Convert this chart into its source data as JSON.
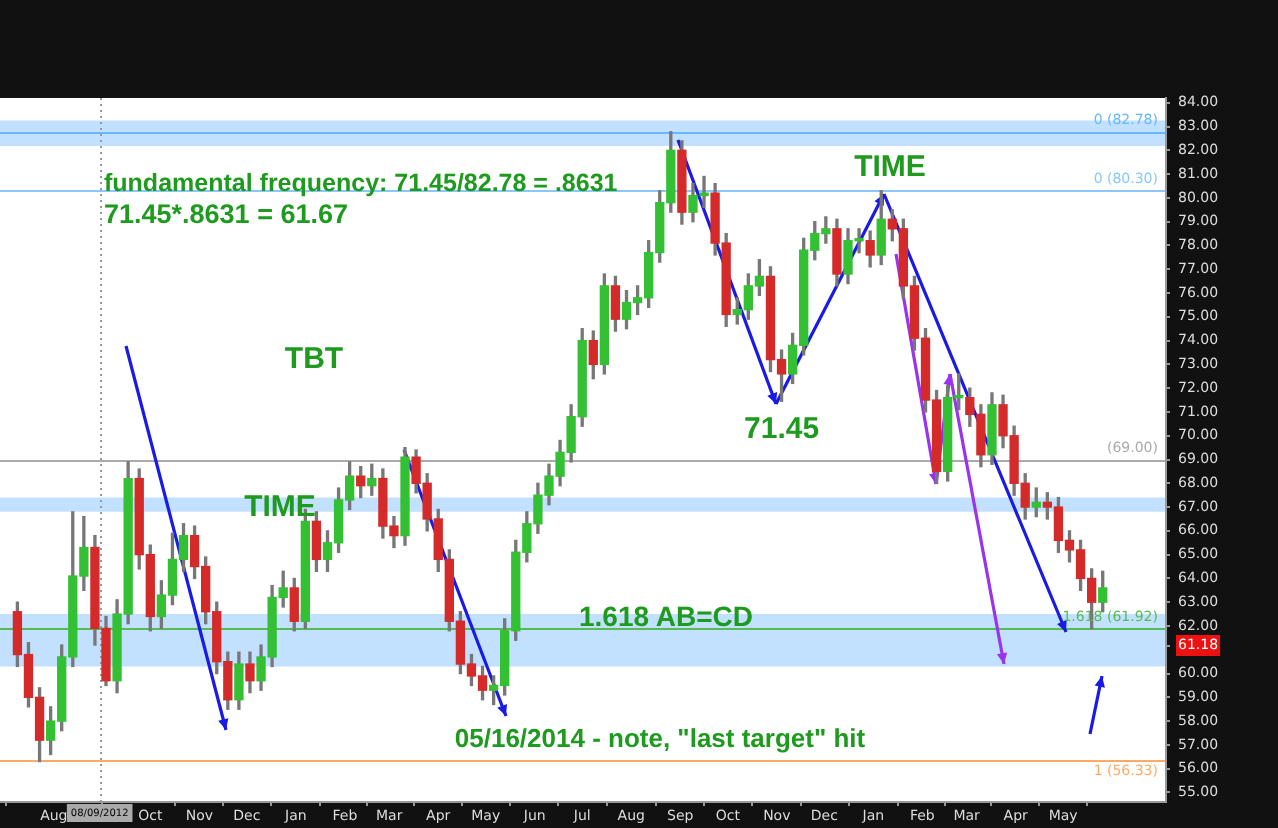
{
  "chart_data": {
    "type": "candlestick",
    "annotations": [
      "fundamental frequency: 71.45/82.78 = .8631",
      "71.45*.8631 = 61.67",
      "TBT",
      "TIME",
      "TIME",
      {
        "text": "71.45",
        "x": "2013-11-04",
        "y": 71.45
      },
      "1.618 AB=CD",
      "05/16/2014 - note, \"last target\" hit"
    ],
    "x": [
      "2012-07-09",
      "2012-07-16",
      "2012-07-23",
      "2012-07-30",
      "2012-08-06",
      "2012-08-13",
      "2012-08-20",
      "2012-08-27",
      "2012-09-03",
      "2012-09-10",
      "2012-09-17",
      "2012-09-24",
      "2012-10-01",
      "2012-10-08",
      "2012-10-15",
      "2012-10-22",
      "2012-10-29",
      "2012-11-05",
      "2012-11-12",
      "2012-11-19",
      "2012-11-26",
      "2012-12-03",
      "2012-12-10",
      "2012-12-17",
      "2012-12-24",
      "2012-12-31",
      "2013-01-07",
      "2013-01-14",
      "2013-01-21",
      "2013-01-28",
      "2013-02-04",
      "2013-02-11",
      "2013-02-18",
      "2013-02-25",
      "2013-03-04",
      "2013-03-11",
      "2013-03-18",
      "2013-03-25",
      "2013-04-01",
      "2013-04-08",
      "2013-04-15",
      "2013-04-22",
      "2013-04-29",
      "2013-05-06",
      "2013-05-13",
      "2013-05-20",
      "2013-05-27",
      "2013-06-03",
      "2013-06-10",
      "2013-06-17",
      "2013-06-24",
      "2013-07-01",
      "2013-07-08",
      "2013-07-15",
      "2013-07-22",
      "2013-07-29",
      "2013-08-05",
      "2013-08-12",
      "2013-08-19",
      "2013-08-26",
      "2013-09-02",
      "2013-09-09",
      "2013-09-16",
      "2013-09-23",
      "2013-09-30",
      "2013-10-07",
      "2013-10-14",
      "2013-10-21",
      "2013-10-28",
      "2013-11-04",
      "2013-11-11",
      "2013-11-18",
      "2013-11-25",
      "2013-12-02",
      "2013-12-09",
      "2013-12-16",
      "2013-12-23",
      "2013-12-30",
      "2014-01-06",
      "2014-01-13",
      "2014-01-20",
      "2014-01-27",
      "2014-02-03",
      "2014-02-10",
      "2014-02-17",
      "2014-02-24",
      "2014-03-03",
      "2014-03-10",
      "2014-03-17",
      "2014-03-24",
      "2014-03-31",
      "2014-04-07",
      "2014-04-14",
      "2014-04-21",
      "2014-04-28",
      "2014-05-05",
      "2014-05-12",
      "2014-05-19",
      "2014-05-26"
    ],
    "ohlc": [
      [
        62.6,
        63.0,
        60.3,
        60.8
      ],
      [
        60.8,
        61.3,
        58.6,
        59.0
      ],
      [
        59.0,
        59.4,
        56.3,
        57.2
      ],
      [
        57.2,
        58.6,
        56.6,
        58.0
      ],
      [
        58.0,
        61.2,
        57.6,
        60.7
      ],
      [
        60.7,
        66.8,
        60.3,
        64.1
      ],
      [
        64.1,
        66.6,
        63.5,
        65.3
      ],
      [
        65.3,
        65.8,
        61.2,
        61.9
      ],
      [
        61.9,
        62.4,
        59.5,
        59.7
      ],
      [
        59.7,
        63.1,
        59.2,
        62.5
      ],
      [
        62.5,
        68.9,
        62.1,
        68.2
      ],
      [
        68.2,
        68.6,
        64.4,
        65.0
      ],
      [
        65.0,
        65.4,
        61.8,
        62.4
      ],
      [
        62.4,
        63.9,
        61.9,
        63.3
      ],
      [
        63.3,
        65.9,
        62.9,
        64.8
      ],
      [
        64.8,
        66.3,
        64.3,
        65.8
      ],
      [
        65.8,
        66.2,
        64.0,
        64.5
      ],
      [
        64.5,
        64.9,
        62.1,
        62.6
      ],
      [
        62.6,
        63.0,
        60.0,
        60.5
      ],
      [
        60.5,
        60.9,
        58.5,
        58.9
      ],
      [
        58.9,
        60.9,
        58.5,
        60.4
      ],
      [
        60.4,
        60.9,
        59.2,
        59.7
      ],
      [
        59.7,
        61.2,
        59.3,
        60.7
      ],
      [
        60.7,
        63.7,
        60.3,
        63.2
      ],
      [
        63.2,
        64.3,
        62.8,
        63.6
      ],
      [
        63.6,
        64.0,
        61.8,
        62.2
      ],
      [
        62.2,
        66.9,
        61.9,
        66.4
      ],
      [
        66.4,
        66.8,
        64.3,
        64.8
      ],
      [
        64.8,
        66.0,
        64.3,
        65.5
      ],
      [
        65.5,
        67.8,
        65.1,
        67.3
      ],
      [
        67.3,
        68.9,
        66.9,
        68.3
      ],
      [
        68.3,
        68.7,
        67.4,
        67.9
      ],
      [
        67.9,
        68.8,
        67.5,
        68.2
      ],
      [
        68.2,
        68.6,
        65.7,
        66.2
      ],
      [
        66.2,
        66.6,
        65.3,
        65.8
      ],
      [
        65.8,
        69.5,
        65.4,
        69.1
      ],
      [
        69.1,
        69.4,
        67.6,
        68.0
      ],
      [
        68.0,
        68.4,
        66.0,
        66.5
      ],
      [
        66.5,
        66.9,
        64.3,
        64.8
      ],
      [
        64.8,
        65.2,
        61.8,
        62.2
      ],
      [
        62.2,
        62.6,
        60.0,
        60.4
      ],
      [
        60.4,
        60.8,
        59.5,
        59.9
      ],
      [
        59.9,
        60.3,
        58.9,
        59.3
      ],
      [
        59.3,
        59.9,
        58.7,
        59.5
      ],
      [
        59.5,
        62.3,
        59.1,
        61.8
      ],
      [
        61.8,
        65.6,
        61.4,
        65.1
      ],
      [
        65.1,
        66.8,
        64.7,
        66.3
      ],
      [
        66.3,
        68.0,
        65.9,
        67.5
      ],
      [
        67.5,
        68.8,
        67.1,
        68.3
      ],
      [
        68.3,
        69.8,
        67.9,
        69.3
      ],
      [
        69.3,
        71.3,
        68.9,
        70.8
      ],
      [
        70.8,
        74.5,
        70.4,
        74.0
      ],
      [
        74.0,
        74.4,
        72.4,
        73.0
      ],
      [
        73.0,
        76.8,
        72.6,
        76.3
      ],
      [
        76.3,
        76.7,
        74.4,
        74.9
      ],
      [
        74.9,
        76.1,
        74.5,
        75.6
      ],
      [
        75.6,
        76.3,
        75.1,
        75.8
      ],
      [
        75.8,
        78.2,
        75.4,
        77.7
      ],
      [
        77.7,
        80.3,
        77.3,
        79.8
      ],
      [
        79.8,
        82.78,
        79.4,
        82.0
      ],
      [
        82.0,
        82.4,
        78.9,
        79.4
      ],
      [
        79.4,
        80.6,
        79.0,
        80.1
      ],
      [
        80.1,
        80.9,
        79.6,
        80.2
      ],
      [
        80.2,
        80.6,
        77.6,
        78.1
      ],
      [
        78.1,
        78.5,
        74.6,
        75.1
      ],
      [
        75.1,
        75.8,
        74.7,
        75.3
      ],
      [
        75.3,
        76.8,
        74.9,
        76.3
      ],
      [
        76.3,
        77.4,
        75.9,
        76.7
      ],
      [
        76.7,
        77.1,
        72.7,
        73.2
      ],
      [
        73.2,
        73.6,
        71.45,
        72.6
      ],
      [
        72.6,
        74.3,
        72.2,
        73.8
      ],
      [
        73.8,
        78.3,
        73.4,
        77.8
      ],
      [
        77.8,
        79.0,
        77.4,
        78.5
      ],
      [
        78.5,
        79.2,
        78.1,
        78.7
      ],
      [
        78.7,
        79.1,
        76.3,
        76.8
      ],
      [
        76.8,
        78.7,
        76.4,
        78.2
      ],
      [
        78.2,
        78.7,
        77.7,
        78.2
      ],
      [
        78.2,
        78.6,
        77.1,
        77.6
      ],
      [
        77.6,
        80.3,
        77.2,
        79.1
      ],
      [
        79.1,
        79.5,
        78.2,
        78.7
      ],
      [
        78.7,
        79.1,
        75.8,
        76.3
      ],
      [
        76.3,
        76.7,
        73.6,
        74.1
      ],
      [
        74.1,
        74.5,
        71.0,
        71.5
      ],
      [
        71.5,
        71.9,
        68.0,
        68.5
      ],
      [
        68.5,
        72.1,
        68.1,
        71.6
      ],
      [
        71.6,
        72.6,
        71.1,
        71.6
      ],
      [
        71.6,
        72.0,
        70.4,
        70.9
      ],
      [
        70.9,
        71.3,
        68.7,
        69.2
      ],
      [
        69.2,
        71.8,
        68.8,
        71.3
      ],
      [
        71.3,
        71.7,
        69.5,
        70.0
      ],
      [
        70.0,
        70.4,
        67.5,
        68.0
      ],
      [
        68.0,
        68.4,
        66.5,
        67.0
      ],
      [
        67.0,
        67.8,
        66.6,
        67.2
      ],
      [
        67.2,
        67.6,
        66.5,
        67.0
      ],
      [
        67.0,
        67.4,
        65.1,
        65.6
      ],
      [
        65.6,
        66.0,
        64.7,
        65.2
      ],
      [
        65.2,
        65.6,
        63.5,
        64.0
      ],
      [
        64.0,
        64.4,
        61.9,
        63.0
      ],
      [
        63.0,
        64.3,
        62.6,
        63.6
      ]
    ],
    "xlim": [
      "2012-06-28",
      "2014-07-05"
    ],
    "xticks": [
      {
        "value": "2012-08-01",
        "label": "Aug"
      },
      {
        "value": "2012-10-01",
        "label": "Oct"
      },
      {
        "value": "2012-11-01",
        "label": "Nov"
      },
      {
        "value": "2012-12-01",
        "label": "Dec"
      },
      {
        "value": "2013-01-01",
        "label": "Jan"
      },
      {
        "value": "2013-02-01",
        "label": "Feb"
      },
      {
        "value": "2013-03-01",
        "label": "Mar"
      },
      {
        "value": "2013-04-01",
        "label": "Apr"
      },
      {
        "value": "2013-05-01",
        "label": "May"
      },
      {
        "value": "2013-06-01",
        "label": "Jun"
      },
      {
        "value": "2013-07-01",
        "label": "Jul"
      },
      {
        "value": "2013-08-01",
        "label": "Aug"
      },
      {
        "value": "2013-09-01",
        "label": "Sep"
      },
      {
        "value": "2013-10-01",
        "label": "Oct"
      },
      {
        "value": "2013-11-01",
        "label": "Nov"
      },
      {
        "value": "2013-12-01",
        "label": "Dec"
      },
      {
        "value": "2014-01-01",
        "label": "Jan"
      },
      {
        "value": "2014-02-01",
        "label": "Feb"
      },
      {
        "value": "2014-03-01",
        "label": "Mar"
      },
      {
        "value": "2014-04-01",
        "label": "Apr"
      },
      {
        "value": "2014-05-01",
        "label": "May"
      }
    ],
    "ylim": [
      54.6,
      84.2
    ],
    "yticks": [
      {
        "value": 55,
        "label": "55.00"
      },
      {
        "value": 56,
        "label": "56.00"
      },
      {
        "value": 57,
        "label": "57.00"
      },
      {
        "value": 58,
        "label": "58.00"
      },
      {
        "value": 59,
        "label": "59.00"
      },
      {
        "value": 60,
        "label": "60.00"
      },
      {
        "value": 61.18,
        "label": "61.18"
      },
      {
        "value": 62,
        "label": "62.00"
      },
      {
        "value": 63,
        "label": "63.00"
      },
      {
        "value": 64,
        "label": "64.00"
      },
      {
        "value": 65,
        "label": "65.00"
      },
      {
        "value": 66,
        "label": "66.00"
      },
      {
        "value": 67,
        "label": "67.00"
      },
      {
        "value": 68,
        "label": "68.00"
      },
      {
        "value": 69,
        "label": "69.00"
      },
      {
        "value": 70,
        "label": "70.00"
      },
      {
        "value": 71,
        "label": "71.00"
      },
      {
        "value": 72,
        "label": "72.00"
      },
      {
        "value": 73,
        "label": "73.00"
      },
      {
        "value": 74,
        "label": "74.00"
      },
      {
        "value": 75,
        "label": "75.00"
      },
      {
        "value": 76,
        "label": "76.00"
      },
      {
        "value": 77,
        "label": "77.00"
      },
      {
        "value": 78,
        "label": "78.00"
      },
      {
        "value": 79,
        "label": "79.00"
      },
      {
        "value": 80,
        "label": "80.00"
      },
      {
        "value": 81,
        "label": "81.00"
      },
      {
        "value": 82,
        "label": "82.00"
      },
      {
        "value": 83,
        "label": "83.00"
      },
      {
        "value": 84,
        "label": "84.00"
      }
    ],
    "ref_lines": [
      {
        "axis": "y",
        "value": 82.78,
        "label": "0 (82.78)",
        "color": "#66b8ff"
      },
      {
        "axis": "y",
        "value": 80.3,
        "label": "0 (80.30)",
        "color": "#88c8ff"
      },
      {
        "axis": "y",
        "value": 69.0,
        "label": "(69.00)",
        "color": "#aaaaaa"
      },
      {
        "axis": "y",
        "value": 61.92,
        "label": "1.618 (61.92)",
        "color": "#55bb55"
      },
      {
        "axis": "y",
        "value": 56.33,
        "label": "1 (56.33)",
        "color": "#ffaa66"
      },
      {
        "axis": "x",
        "value": "2012-08-30",
        "label": "08/09/2012",
        "color": "#999999",
        "line_style": "dotted"
      }
    ],
    "bands": [
      {
        "axis": "y",
        "from": 82.18,
        "to": 83.25,
        "color": "#99ccff"
      },
      {
        "axis": "y",
        "from": 66.8,
        "to": 67.4,
        "color": "#99ccff"
      },
      {
        "axis": "y",
        "from": 60.3,
        "to": 62.5,
        "color": "#99ccff"
      }
    ]
  }
}
